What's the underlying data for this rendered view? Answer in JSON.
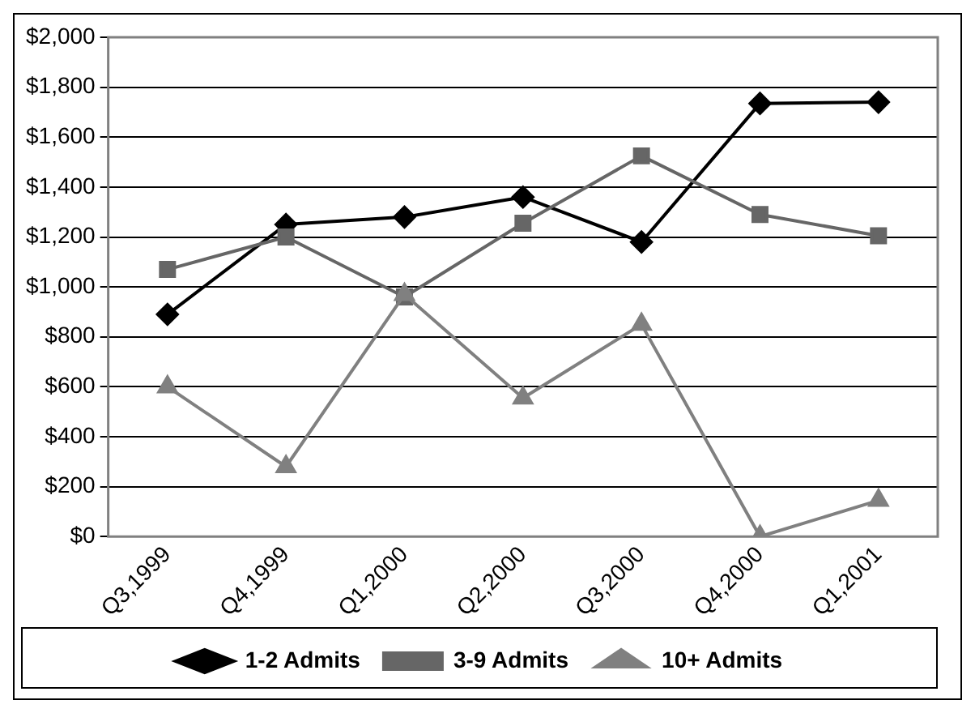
{
  "chart_data": {
    "type": "line",
    "categories": [
      "Q3,1999",
      "Q4,1999",
      "Q1,2000",
      "Q2,2000",
      "Q3,2000",
      "Q4,2000",
      "Q1,2001"
    ],
    "series": [
      {
        "name": "1-2 Admits",
        "color": "#000000",
        "marker": "diamond",
        "values": [
          890,
          1250,
          1280,
          1360,
          1180,
          1735,
          1740
        ]
      },
      {
        "name": "3-9 Admits",
        "color": "#666666",
        "marker": "square",
        "values": [
          1070,
          1200,
          960,
          1255,
          1525,
          1290,
          1205
        ]
      },
      {
        "name": "10+ Admits",
        "color": "#808080",
        "marker": "triangle",
        "values": [
          600,
          280,
          970,
          555,
          850,
          0,
          145
        ]
      }
    ],
    "ylim": [
      0,
      2000
    ],
    "yticks": [
      {
        "value": 0,
        "label": "$0"
      },
      {
        "value": 200,
        "label": "$200"
      },
      {
        "value": 400,
        "label": "$400"
      },
      {
        "value": 600,
        "label": "$600"
      },
      {
        "value": 800,
        "label": "$800"
      },
      {
        "value": 1000,
        "label": "$1,000"
      },
      {
        "value": 1200,
        "label": "$1,200"
      },
      {
        "value": 1400,
        "label": "$1,400"
      },
      {
        "value": 1600,
        "label": "$1,600"
      },
      {
        "value": 1800,
        "label": "$1,800"
      },
      {
        "value": 2000,
        "label": "$2,000"
      }
    ],
    "grid": "y",
    "legend": "bottom",
    "line_style": "solid"
  }
}
